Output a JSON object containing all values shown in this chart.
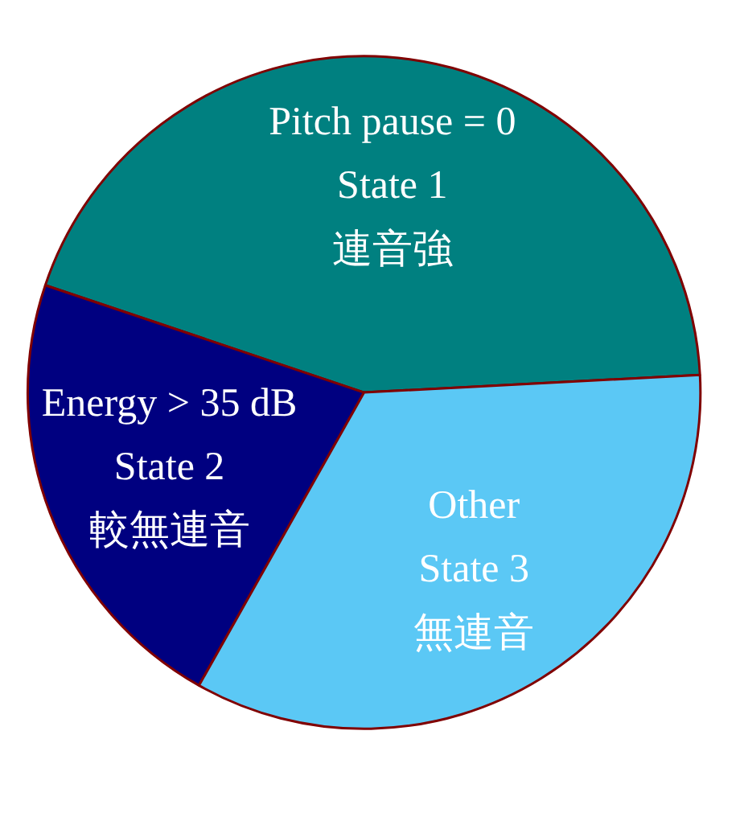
{
  "chart_data": {
    "type": "pie",
    "categories": [
      "Pitch pause = 0\nState 1\n連音強",
      "Energy > 35 dB\nState 2\n較無連音",
      "Other\nState 3\n無連音"
    ],
    "values": [
      44,
      22,
      34
    ],
    "colors": [
      "#008080",
      "#000080",
      "#5bc8f5"
    ]
  }
}
